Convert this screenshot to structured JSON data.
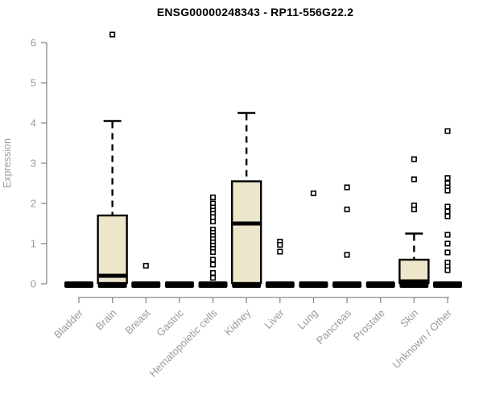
{
  "page": {
    "background": "#FFFFFF"
  },
  "chart_data": {
    "type": "boxplot",
    "title": "ENSG00000248343 - RP11-556G22.2",
    "ylabel": "Expression",
    "xlabel": "",
    "ylim": [
      0,
      6
    ],
    "yticks": [
      0,
      1,
      2,
      3,
      4,
      5,
      6
    ],
    "grid": false,
    "x_label_rotation_deg": 45,
    "categories": [
      "Bladder",
      "Brain",
      "Breast",
      "Gastric",
      "Hematopoietic cells",
      "Kidney",
      "Liver",
      "Lung",
      "Pancreas",
      "Prostate",
      "Skin",
      "Unknown / Other"
    ],
    "boxes": [
      {
        "category": "Bladder",
        "whisker_low": 0,
        "q1": 0,
        "median": 0,
        "q3": 0,
        "whisker_high": 0,
        "outliers": []
      },
      {
        "category": "Brain",
        "whisker_low": 0,
        "q1": 0.02,
        "median": 0.2,
        "q3": 1.7,
        "whisker_high": 4.05,
        "outliers": [
          6.2
        ]
      },
      {
        "category": "Breast",
        "whisker_low": 0,
        "q1": 0,
        "median": 0,
        "q3": 0,
        "whisker_high": 0,
        "outliers": [
          0.45
        ]
      },
      {
        "category": "Gastric",
        "whisker_low": 0,
        "q1": 0,
        "median": 0,
        "q3": 0,
        "whisker_high": 0,
        "outliers": []
      },
      {
        "category": "Hematopoietic cells",
        "whisker_low": 0,
        "q1": 0,
        "median": 0,
        "q3": 0,
        "whisker_high": 0,
        "outliers": [
          2.15,
          2.0,
          1.9,
          1.82,
          1.74,
          1.66,
          1.55,
          1.35,
          1.27,
          1.19,
          1.11,
          1.03,
          0.95,
          0.87,
          0.79,
          0.6,
          0.48,
          0.27,
          0.15
        ]
      },
      {
        "category": "Kidney",
        "whisker_low": 0,
        "q1": 0.02,
        "median": 1.5,
        "q3": 2.55,
        "whisker_high": 4.25,
        "outliers": []
      },
      {
        "category": "Liver",
        "whisker_low": 0,
        "q1": 0,
        "median": 0,
        "q3": 0,
        "whisker_high": 0,
        "outliers": [
          1.05,
          0.97,
          0.8
        ]
      },
      {
        "category": "Lung",
        "whisker_low": 0,
        "q1": 0,
        "median": 0,
        "q3": 0,
        "whisker_high": 0,
        "outliers": [
          2.25
        ]
      },
      {
        "category": "Pancreas",
        "whisker_low": 0,
        "q1": 0,
        "median": 0,
        "q3": 0,
        "whisker_high": 0,
        "outliers": [
          2.4,
          1.85,
          0.72
        ]
      },
      {
        "category": "Prostate",
        "whisker_low": 0,
        "q1": 0,
        "median": 0,
        "q3": 0,
        "whisker_high": 0,
        "outliers": []
      },
      {
        "category": "Skin",
        "whisker_low": 0,
        "q1": 0.02,
        "median": 0.06,
        "q3": 0.6,
        "whisker_high": 1.25,
        "outliers": [
          3.1,
          2.6,
          1.95,
          1.85
        ]
      },
      {
        "category": "Unknown / Other",
        "whisker_low": 0,
        "q1": 0,
        "median": 0,
        "q3": 0,
        "whisker_high": 0,
        "outliers": [
          3.8,
          2.63,
          2.5,
          2.4,
          2.32,
          1.92,
          1.8,
          1.68,
          1.22,
          1.0,
          0.78,
          0.53,
          0.43,
          0.34
        ]
      }
    ],
    "colors": {
      "box_fill": "#ECE6CA",
      "box_stroke": "#000000",
      "median": "#000000",
      "whisker": "#000000",
      "outlier_stroke": "#000000",
      "outlier_fill": "#FFFFFF",
      "axis": "#8A8A8A",
      "tick_labels": "#9A9A9A",
      "title": "#000000",
      "background": "#FFFFFF"
    }
  }
}
